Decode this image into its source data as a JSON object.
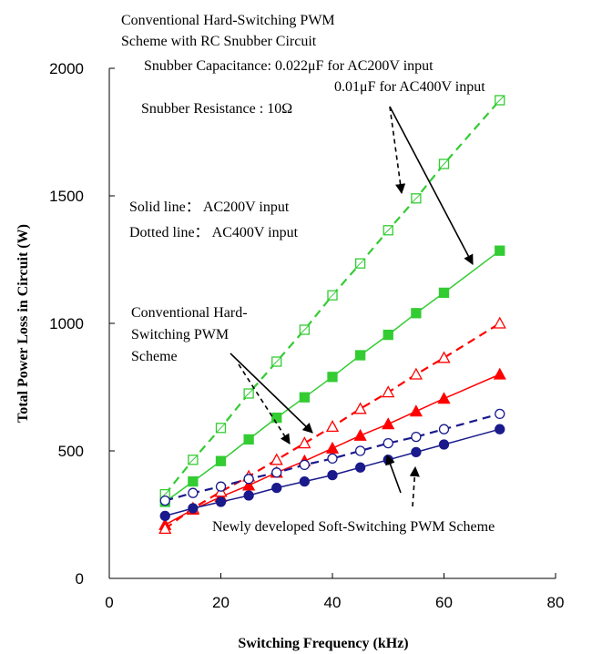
{
  "chart_data": {
    "type": "line",
    "xlabel": "Switching  Frequency (kHz)",
    "ylabel": "Total Power Loss in Circuit    (W)",
    "xlim": [
      0,
      80
    ],
    "ylim": [
      0,
      2000
    ],
    "x_ticks": [
      "0",
      "20",
      "40",
      "60",
      "80"
    ],
    "y_ticks": [
      "0",
      "500",
      "1000",
      "1500",
      "2000"
    ],
    "grid": false,
    "legend": "none",
    "x": [
      10,
      15,
      20,
      25,
      30,
      35,
      40,
      45,
      50,
      55,
      60,
      70
    ],
    "series": [
      {
        "key": "snub200",
        "color": "#33cc33",
        "dashed": false,
        "marker": "filled-square",
        "values": [
          300,
          380,
          460,
          545,
          630,
          710,
          790,
          875,
          955,
          1040,
          1120,
          1285
        ]
      },
      {
        "key": "snub400",
        "color": "#33cc33",
        "dashed": true,
        "marker": "open-square",
        "values": [
          330,
          465,
          590,
          725,
          850,
          975,
          1110,
          1235,
          1365,
          1490,
          1625,
          1875
        ]
      },
      {
        "key": "hard200",
        "color": "#ff0000",
        "dashed": false,
        "marker": "filled-triangle",
        "values": [
          210,
          270,
          320,
          365,
          415,
          460,
          510,
          560,
          605,
          655,
          705,
          800
        ]
      },
      {
        "key": "hard400",
        "color": "#ff0000",
        "dashed": true,
        "marker": "open-triangle",
        "values": [
          195,
          275,
          340,
          400,
          465,
          530,
          595,
          665,
          730,
          800,
          865,
          1000
        ]
      },
      {
        "key": "soft200",
        "color": "#1a1a8c",
        "dashed": false,
        "marker": "filled-circle",
        "values": [
          245,
          275,
          300,
          325,
          355,
          380,
          405,
          435,
          465,
          495,
          525,
          585
        ]
      },
      {
        "key": "soft400",
        "color": "#1a1a8c",
        "dashed": true,
        "marker": "open-circle",
        "values": [
          305,
          335,
          360,
          390,
          415,
          445,
          470,
          500,
          530,
          555,
          585,
          645
        ]
      }
    ],
    "annotations": {
      "snubber_title_line1": "Conventional Hard-Switching PWM",
      "snubber_title_line2": "Scheme with RC Snubber Circuit",
      "snubber_cap_line1": "Snubber Capacitance:   0.022μF for AC200V input",
      "snubber_cap_line2": "0.01μF for AC400V input",
      "snubber_res": "Snubber Resistance    :    10Ω",
      "solid_line": "Solid line： AC200V  input",
      "dotted_line": "Dotted line： AC400V  input",
      "hard_line1": "Conventional Hard-",
      "hard_line2": "Switching PWM",
      "hard_line3": "Scheme",
      "soft": "Newly developed Soft-Switching PWM Scheme"
    }
  }
}
